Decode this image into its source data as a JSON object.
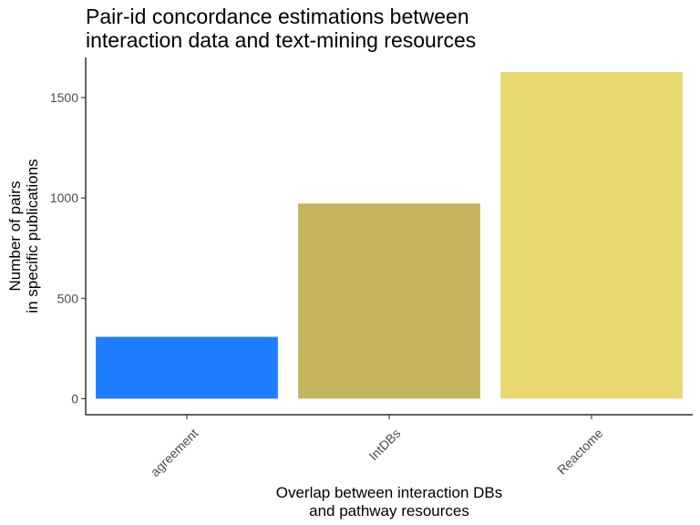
{
  "chart_data": {
    "type": "bar",
    "title": [
      "Pair-id concordance estimations between",
      "interaction data and text-mining resources"
    ],
    "xlabel": [
      "Overlap between interaction DBs",
      "and pathway resources"
    ],
    "ylabel": [
      "Number of pairs",
      "in specific publications"
    ],
    "categories": [
      "agreement",
      "IntDBs",
      "Reactome"
    ],
    "values": [
      308,
      972,
      1627
    ],
    "colors": [
      "#1E7EFF",
      "#C4B45E",
      "#E8D872"
    ],
    "yticks": [
      0,
      500,
      1000,
      1500
    ],
    "ylim": [
      -80,
      1700
    ],
    "grid": false,
    "legend": "none"
  }
}
